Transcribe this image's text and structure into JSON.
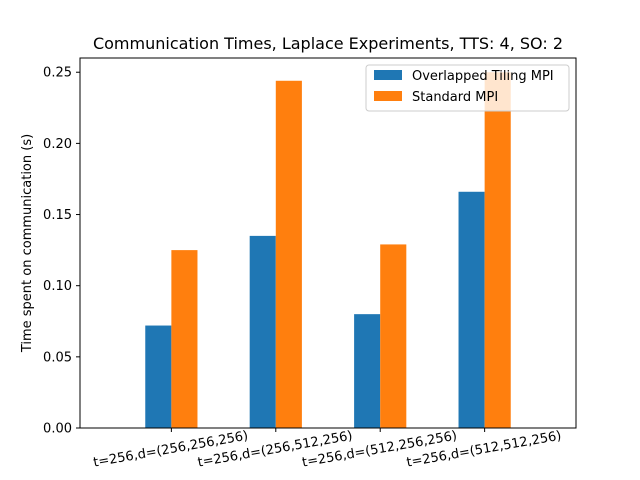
{
  "chart_data": {
    "type": "bar",
    "title": "Communication Times, Laplace Experiments, TTS: 4, SO: 2",
    "xlabel": "",
    "ylabel": "Time spent on communication (s)",
    "categories": [
      "t=256,d=(256,256,256)",
      "t=256,d=(256,512,256)",
      "t=256,d=(512,256,256)",
      "t=256,d=(512,512,256)"
    ],
    "series": [
      {
        "name": "Overlapped Tiling MPI",
        "color": "#1f77b4",
        "values": [
          0.072,
          0.135,
          0.08,
          0.166
        ]
      },
      {
        "name": "Standard MPI",
        "color": "#ff7f0e",
        "values": [
          0.125,
          0.244,
          0.129,
          0.25
        ]
      }
    ],
    "ylim": [
      0,
      0.26
    ],
    "yticks": [
      0.0,
      0.05,
      0.1,
      0.15,
      0.2,
      0.25
    ],
    "ytick_labels": [
      "0.00",
      "0.05",
      "0.10",
      "0.15",
      "0.20",
      "0.25"
    ],
    "legend_position": "top-right",
    "grid": false
  }
}
